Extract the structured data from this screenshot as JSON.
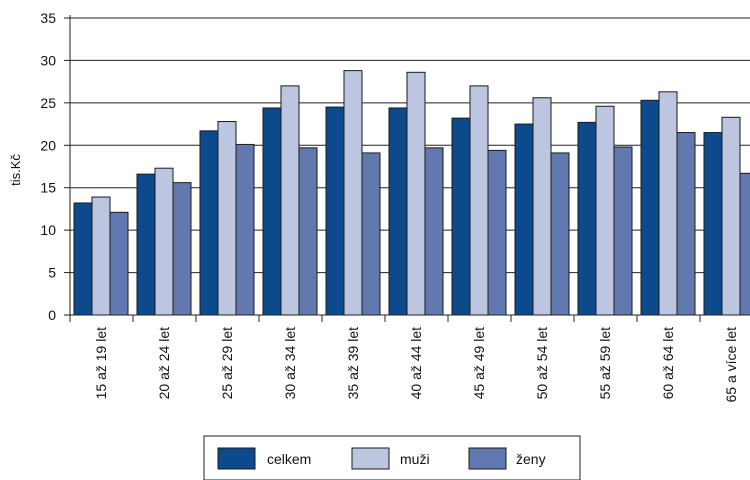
{
  "chart_data": {
    "type": "bar",
    "ylabel": "tis.Kč",
    "xlabel": "",
    "ylim": [
      0,
      35
    ],
    "yticks": [
      0,
      5,
      10,
      15,
      20,
      25,
      30,
      35
    ],
    "grid": true,
    "legend_position": "bottom",
    "categories": [
      "15 až 19 let",
      "20 až 24 let",
      "25 až 29 let",
      "30 až 34 let",
      "35 až 39 let",
      "40 až 44 let",
      "45 až 49 let",
      "50 až 54 let",
      "55 až 59 let",
      "60 až 64 let",
      "65 a více let"
    ],
    "series": [
      {
        "name": "celkem",
        "color": "#0d4a8c",
        "values": [
          13.2,
          16.6,
          21.7,
          24.4,
          24.5,
          24.4,
          23.2,
          22.5,
          22.7,
          25.3,
          21.5
        ]
      },
      {
        "name": "muži",
        "color": "#bcc6e0",
        "values": [
          13.9,
          17.3,
          22.8,
          27.0,
          28.8,
          28.6,
          27.0,
          25.6,
          24.6,
          26.3,
          23.3
        ]
      },
      {
        "name": "ženy",
        "color": "#6279b0",
        "values": [
          12.1,
          15.6,
          20.1,
          19.7,
          19.1,
          19.7,
          19.4,
          19.1,
          19.8,
          21.5,
          16.7
        ]
      }
    ]
  }
}
